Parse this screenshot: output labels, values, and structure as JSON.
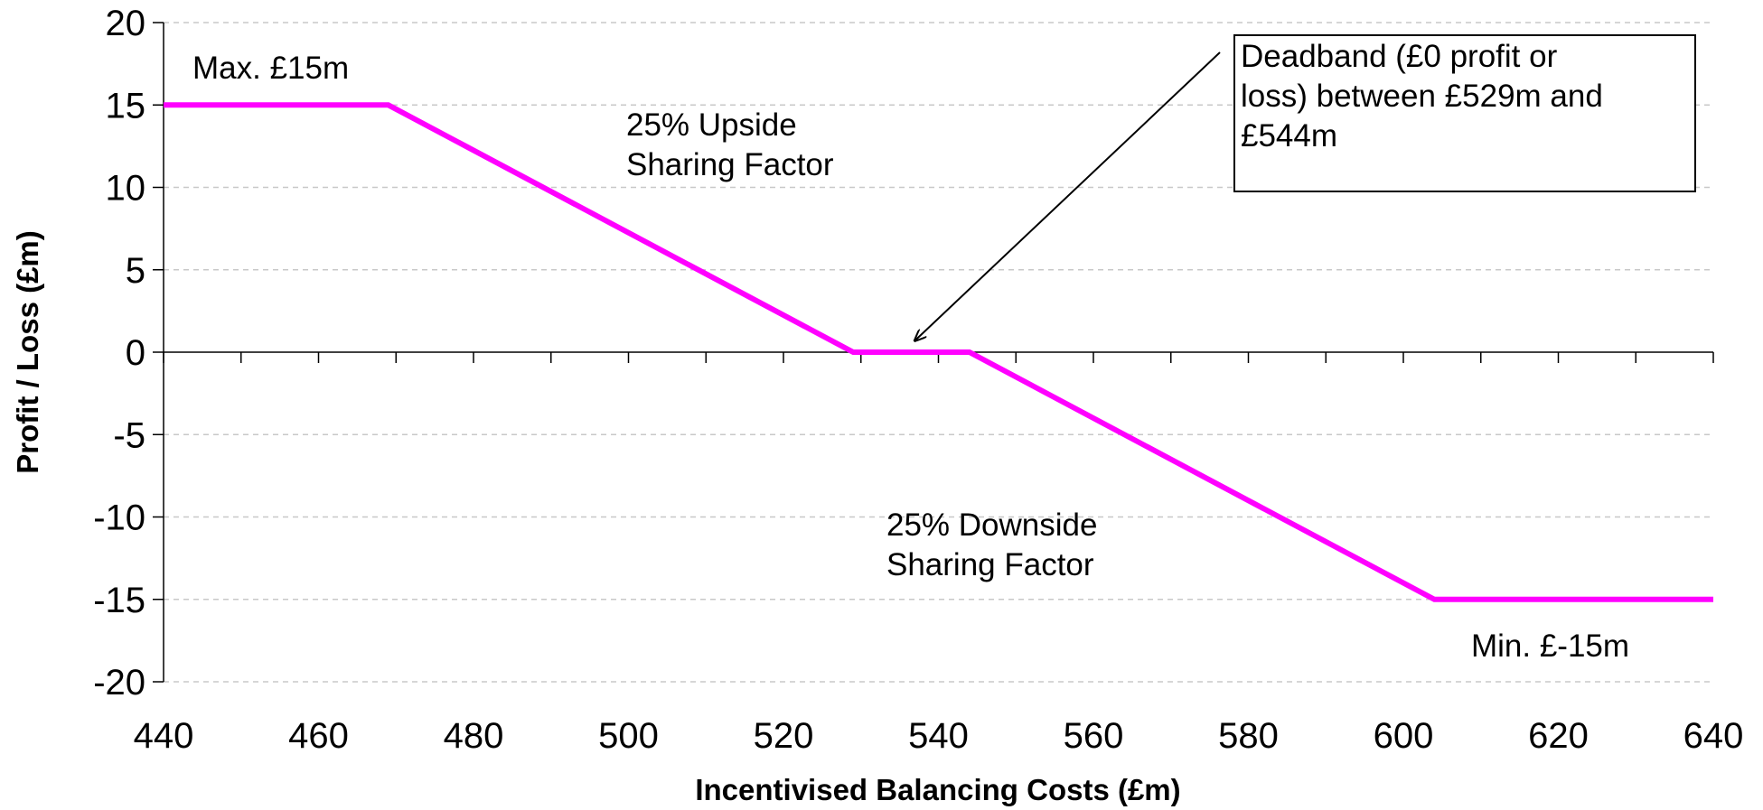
{
  "chart_data": {
    "type": "line",
    "xlabel": "Incentivised Balancing Costs (£m)",
    "ylabel": "Profit / Loss (£m)",
    "xlim": [
      440,
      640
    ],
    "ylim": [
      -20,
      20
    ],
    "x_ticks": [
      440,
      460,
      480,
      500,
      520,
      540,
      560,
      580,
      600,
      620,
      640
    ],
    "y_ticks": [
      20,
      15,
      10,
      5,
      0,
      -5,
      -10,
      -15,
      -20
    ],
    "x_minor_step": 10,
    "grid": "horizontal dashed",
    "series": [
      {
        "color": "#ff00ff",
        "x": [
          440,
          469,
          529,
          544,
          604,
          640
        ],
        "y": [
          15,
          15,
          0,
          0,
          -15,
          -15
        ]
      }
    ],
    "annotations": [
      {
        "id": "max",
        "lines": [
          "Max. £15m"
        ]
      },
      {
        "id": "upside",
        "lines": [
          "25% Upside",
          "Sharing Factor"
        ]
      },
      {
        "id": "downside",
        "lines": [
          "25% Downside",
          "Sharing Factor"
        ]
      },
      {
        "id": "min",
        "lines": [
          "Min. £-15m"
        ]
      },
      {
        "id": "deadband",
        "lines": [
          "Deadband (£0 profit or",
          "loss) between £529m and",
          "£544m"
        ],
        "boxed": true,
        "arrow_to": {
          "x": 537,
          "y": 0.5
        }
      }
    ]
  }
}
